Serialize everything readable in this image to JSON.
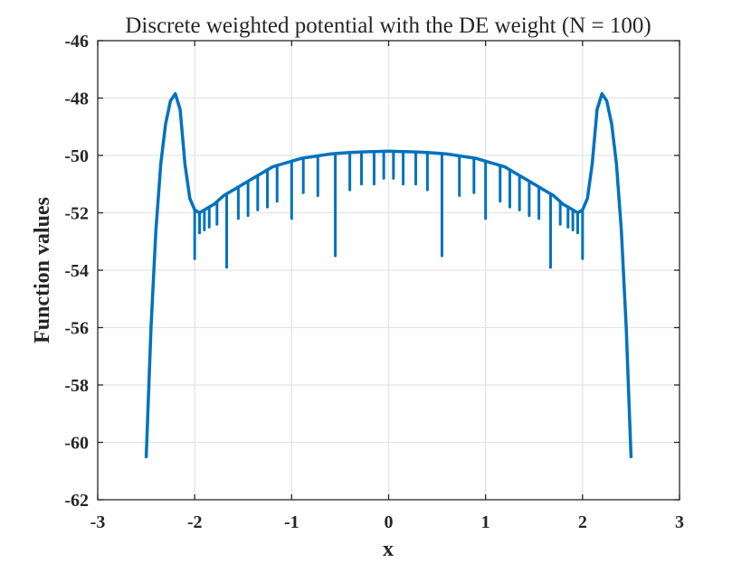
{
  "chart_data": {
    "type": "line",
    "title": "Discrete weighted potential with the DE weight (N = 100)",
    "xlabel": "x",
    "ylabel": "Function values",
    "xlim": [
      -3,
      3
    ],
    "ylim": [
      -62,
      -46
    ],
    "xticks": [
      -3,
      -2,
      -1,
      0,
      1,
      2,
      3
    ],
    "xtick_labels": [
      "-3",
      "-2",
      "-1",
      "0",
      "1",
      "2",
      "3"
    ],
    "yticks": [
      -62,
      -60,
      -58,
      -56,
      -54,
      -52,
      -50,
      -48,
      -46
    ],
    "ytick_labels": [
      "-62",
      "-60",
      "-58",
      "-56",
      "-54",
      "-52",
      "-50",
      "-48",
      "-46"
    ],
    "grid": true,
    "series": [
      {
        "name": "Discrete weighted potential",
        "color": "#0072BD",
        "x": [
          -2.5,
          -2.45,
          -2.4,
          -2.35,
          -2.3,
          -2.25,
          -2.2,
          -2.15,
          -2.1,
          -2.05,
          -2.0,
          -1.95,
          -1.9,
          -1.85,
          -1.8,
          -1.7,
          -1.6,
          -1.5,
          -1.4,
          -1.3,
          -1.2,
          -1.1,
          -1.0,
          -0.9,
          -0.8,
          -0.7,
          -0.6,
          -0.5,
          -0.4,
          -0.3,
          -0.2,
          -0.1,
          0.0,
          0.1,
          0.2,
          0.3,
          0.4,
          0.5,
          0.6,
          0.7,
          0.8,
          0.9,
          1.0,
          1.1,
          1.2,
          1.3,
          1.4,
          1.5,
          1.6,
          1.7,
          1.8,
          1.85,
          1.9,
          1.95,
          2.0,
          2.05,
          2.1,
          2.15,
          2.2,
          2.25,
          2.3,
          2.35,
          2.4,
          2.45,
          2.5
        ],
        "y": [
          -60.5,
          -56.0,
          -52.6,
          -50.3,
          -48.9,
          -48.1,
          -47.85,
          -48.4,
          -50.3,
          -51.5,
          -51.9,
          -52.0,
          -51.9,
          -51.8,
          -51.7,
          -51.4,
          -51.2,
          -51.0,
          -50.8,
          -50.6,
          -50.4,
          -50.3,
          -50.2,
          -50.1,
          -50.05,
          -50.0,
          -49.95,
          -49.92,
          -49.9,
          -49.88,
          -49.87,
          -49.86,
          -49.85,
          -49.86,
          -49.87,
          -49.88,
          -49.9,
          -49.92,
          -49.95,
          -50.0,
          -50.05,
          -50.1,
          -50.2,
          -50.3,
          -50.4,
          -50.6,
          -50.8,
          -51.0,
          -51.2,
          -51.4,
          -51.7,
          -51.8,
          -51.9,
          -52.0,
          -51.9,
          -51.5,
          -50.3,
          -48.4,
          -47.85,
          -48.1,
          -48.9,
          -50.3,
          -52.6,
          -56.0,
          -60.5
        ]
      }
    ],
    "spikes": [
      {
        "x": -2.0,
        "y": -53.6
      },
      {
        "x": -1.95,
        "y": -52.7
      },
      {
        "x": -1.9,
        "y": -52.6
      },
      {
        "x": -1.85,
        "y": -52.5
      },
      {
        "x": -1.77,
        "y": -52.4
      },
      {
        "x": -1.67,
        "y": -53.9
      },
      {
        "x": -1.55,
        "y": -52.2
      },
      {
        "x": -1.45,
        "y": -52.1
      },
      {
        "x": -1.35,
        "y": -51.9
      },
      {
        "x": -1.25,
        "y": -51.8
      },
      {
        "x": -1.15,
        "y": -51.6
      },
      {
        "x": -1.0,
        "y": -52.2
      },
      {
        "x": -0.88,
        "y": -51.3
      },
      {
        "x": -0.73,
        "y": -51.4
      },
      {
        "x": -0.55,
        "y": -53.5
      },
      {
        "x": -0.4,
        "y": -51.2
      },
      {
        "x": -0.28,
        "y": -51.0
      },
      {
        "x": -0.15,
        "y": -51.0
      },
      {
        "x": -0.05,
        "y": -50.8
      },
      {
        "x": 0.05,
        "y": -50.8
      },
      {
        "x": 0.15,
        "y": -51.0
      },
      {
        "x": 0.28,
        "y": -51.0
      },
      {
        "x": 0.4,
        "y": -51.2
      },
      {
        "x": 0.55,
        "y": -53.5
      },
      {
        "x": 0.73,
        "y": -51.4
      },
      {
        "x": 0.88,
        "y": -51.3
      },
      {
        "x": 1.0,
        "y": -52.2
      },
      {
        "x": 1.15,
        "y": -51.6
      },
      {
        "x": 1.25,
        "y": -51.8
      },
      {
        "x": 1.35,
        "y": -51.9
      },
      {
        "x": 1.45,
        "y": -52.1
      },
      {
        "x": 1.55,
        "y": -52.2
      },
      {
        "x": 1.67,
        "y": -53.9
      },
      {
        "x": 1.77,
        "y": -52.4
      },
      {
        "x": 1.85,
        "y": -52.5
      },
      {
        "x": 1.9,
        "y": -52.6
      },
      {
        "x": 1.95,
        "y": -52.7
      },
      {
        "x": 2.0,
        "y": -53.6
      }
    ]
  }
}
